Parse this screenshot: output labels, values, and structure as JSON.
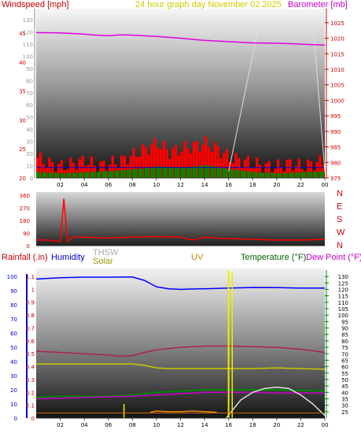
{
  "chart_data": [
    {
      "type": "line",
      "panel": "wind_barometer",
      "title": "24 hour graph day   November 02 2025",
      "left_axis_label": "Windspeed [mph]",
      "right_axis_label": "Barometer [mb]",
      "x_ticks": [
        "02",
        "04",
        "06",
        "08",
        "10",
        "12",
        "14",
        "16",
        "18",
        "20",
        "22",
        "00"
      ],
      "left_mph_ticks": [
        "20",
        "25",
        "30",
        "35",
        "40",
        "45"
      ],
      "left_inner_ticks": [
        "0",
        "10",
        "20",
        "30",
        "40",
        "50",
        "60",
        "70",
        "80",
        "90",
        "100",
        "110",
        "120",
        "130"
      ],
      "right_ticks": [
        "975",
        "980",
        "985",
        "990",
        "995",
        "1000",
        "1005",
        "1010",
        "1015",
        "1020",
        "1025"
      ],
      "ylim_mph": [
        20,
        45
      ],
      "ylim_mb": [
        975,
        1028
      ],
      "series": [
        {
          "name": "Barometer",
          "color": "#e000e0",
          "x": [
            0,
            2,
            4,
            5,
            6,
            7,
            8,
            10,
            12,
            14,
            16,
            18,
            20,
            22,
            23,
            24
          ],
          "y": [
            1021.8,
            1021.7,
            1021.3,
            1021.0,
            1020.8,
            1021.1,
            1021.0,
            1020.6,
            1020.0,
            1019.3,
            1018.9,
            1018.5,
            1018.4,
            1018.1,
            1017.9,
            1017.8
          ]
        },
        {
          "name": "Wind gust",
          "color": "#ff0000",
          "kind": "bars",
          "x": [
            0,
            1,
            2,
            3,
            4,
            5,
            6,
            7,
            8,
            9,
            10,
            11,
            12,
            13,
            14,
            15,
            16,
            17,
            18,
            19,
            20,
            21,
            22,
            23,
            24
          ],
          "y": [
            23.5,
            22.5,
            22,
            22.5,
            23,
            22,
            22.5,
            23,
            24,
            25,
            26,
            24.5,
            25,
            25.5,
            26,
            25,
            23.5,
            23,
            22.5,
            22,
            22,
            22.5,
            22,
            22.5,
            23
          ]
        },
        {
          "name": "Wind avg",
          "color": "#008800",
          "kind": "bars",
          "x": [
            0,
            2,
            4,
            6,
            8,
            10,
            12,
            14,
            16,
            18,
            20,
            22,
            24
          ],
          "y": [
            21,
            20.8,
            21,
            21.2,
            21.5,
            22,
            21.8,
            22.2,
            21.5,
            21,
            20.8,
            21,
            21.2
          ]
        }
      ]
    },
    {
      "type": "line",
      "panel": "wind_direction",
      "left_ticks": [
        "0",
        "90",
        "180",
        "270",
        "360"
      ],
      "right_labels": [
        "N",
        "W",
        "S",
        "E",
        "N"
      ],
      "ylim": [
        0,
        360
      ],
      "series": [
        {
          "name": "Wind direction",
          "color": "#ff0000",
          "x": [
            0,
            1,
            2,
            2.3,
            2.6,
            3,
            4,
            6,
            8,
            10,
            12,
            13,
            14,
            15,
            16,
            18,
            20,
            22,
            24
          ],
          "y": [
            40,
            40,
            30,
            335,
            30,
            60,
            60,
            55,
            60,
            65,
            60,
            40,
            60,
            55,
            50,
            45,
            40,
            40,
            45
          ]
        }
      ]
    },
    {
      "type": "line",
      "panel": "rain_temp",
      "labels": {
        "rainfall": "Rainfall (.in)",
        "humidity": "Humidity",
        "thsw": "THSW",
        "solar": "Solar",
        "uv": "UV",
        "temperature": "Temperature (°F)",
        "dewpoint": "Dew Point (°F)"
      },
      "rain_ticks": [
        "0",
        "0.1",
        "0.2",
        "0.3",
        "0.4",
        "0.5",
        "0.6",
        "0.7",
        "0.8",
        "0.9",
        "1",
        "1.1"
      ],
      "humidity_ticks": [
        "0",
        "10",
        "20",
        "30",
        "40",
        "50",
        "60",
        "70",
        "80",
        "90",
        "100"
      ],
      "temp_ticks": [
        "25",
        "30",
        "35",
        "40",
        "45",
        "50",
        "55",
        "60",
        "65",
        "70",
        "75",
        "80",
        "85",
        "90",
        "95",
        "100",
        "105",
        "110",
        "115",
        "120",
        "125",
        "130"
      ],
      "ylim_temp": [
        20,
        135
      ],
      "series": [
        {
          "name": "Humidity",
          "color": "#0000ff",
          "x": [
            0,
            2,
            4,
            6,
            8,
            9,
            10,
            11,
            12,
            13,
            14,
            16,
            18,
            20,
            22,
            24
          ],
          "y": [
            128,
            129,
            129.5,
            129.5,
            129.6,
            127,
            122,
            120.5,
            120,
            120.3,
            120.5,
            121,
            121.5,
            121.4,
            121,
            121
          ]
        },
        {
          "name": "THSW",
          "color": "#aa2255",
          "x": [
            0,
            2,
            4,
            6,
            7,
            8,
            9,
            10,
            12,
            14,
            16,
            18,
            20,
            22,
            24
          ],
          "y": [
            72,
            71,
            70,
            69,
            68,
            68.5,
            71,
            73,
            75,
            76,
            76,
            75.5,
            75,
            73.5,
            71
          ]
        },
        {
          "name": "Solar",
          "color": "#c8c800",
          "x": [
            0,
            2,
            4,
            6,
            8,
            9,
            10,
            11,
            12,
            14,
            16,
            18,
            20,
            22,
            24
          ],
          "y": [
            62,
            62,
            62,
            62,
            62,
            61,
            59,
            58.5,
            58.5,
            58.5,
            58.5,
            58.5,
            59,
            58.5,
            58
          ]
        },
        {
          "name": "Temperature",
          "color": "#008800",
          "x": [
            0,
            2,
            4,
            6,
            8,
            10,
            12,
            14,
            16,
            18,
            20,
            22,
            24
          ],
          "y": [
            36,
            37,
            37,
            37,
            38,
            40,
            41,
            42,
            42,
            42,
            42,
            41.5,
            41
          ]
        },
        {
          "name": "Dew Point",
          "color": "#cc00cc",
          "x": [
            0,
            2,
            4,
            6,
            8,
            10,
            12,
            14,
            16,
            18,
            20,
            22,
            24
          ],
          "y": [
            35,
            35.5,
            36,
            36.5,
            37,
            38,
            39,
            40,
            40,
            40,
            39.5,
            39.5,
            39.5
          ]
        },
        {
          "name": "UV",
          "color": "#ee8800",
          "x": [
            9.5,
            10,
            11,
            12,
            13,
            14,
            15
          ],
          "y": [
            24.5,
            25.5,
            25,
            25,
            25.5,
            25,
            24.5
          ]
        },
        {
          "name": "Solar curve",
          "color": "#dddddd",
          "x": [
            15.8,
            17,
            18,
            19,
            20,
            21,
            22,
            23,
            24
          ],
          "y": [
            20,
            34,
            40,
            43,
            44,
            43,
            38,
            31,
            22
          ]
        }
      ]
    }
  ]
}
